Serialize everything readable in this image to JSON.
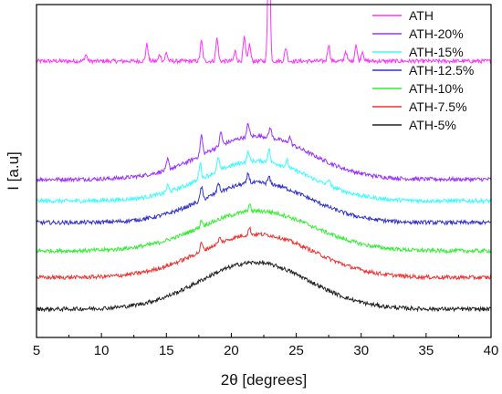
{
  "chart_data": {
    "type": "line",
    "xlabel": "2θ [degrees]",
    "ylabel": "I [a.u]",
    "xlim": [
      5,
      40
    ],
    "x_ticks": [
      5,
      10,
      15,
      20,
      25,
      30,
      35,
      40
    ],
    "grid": false,
    "legend_position": "top-right",
    "series": [
      {
        "name": "ATH",
        "color": "#ff33ff",
        "offset": 0.83,
        "hump": 0.0,
        "hump_center": 22,
        "hump_width": 3.5,
        "peaks": [
          [
            8.8,
            0.02
          ],
          [
            13.5,
            0.05
          ],
          [
            14.5,
            0.02
          ],
          [
            15.0,
            0.025
          ],
          [
            17.7,
            0.06
          ],
          [
            18.9,
            0.07
          ],
          [
            20.3,
            0.03
          ],
          [
            21.0,
            0.07
          ],
          [
            21.4,
            0.05
          ],
          [
            22.9,
            0.4
          ],
          [
            24.2,
            0.04
          ],
          [
            27.5,
            0.05
          ],
          [
            28.8,
            0.03
          ],
          [
            29.6,
            0.05
          ],
          [
            30.1,
            0.03
          ]
        ]
      },
      {
        "name": "ATH-20%",
        "color": "#9933ff",
        "offset": 0.475,
        "hump": 0.13,
        "hump_center": 22,
        "hump_width": 4,
        "peaks": [
          [
            15.1,
            0.03
          ],
          [
            17.7,
            0.06
          ],
          [
            19.2,
            0.04
          ],
          [
            21.3,
            0.04
          ],
          [
            23.0,
            0.03
          ],
          [
            24.5,
            0.02
          ]
        ]
      },
      {
        "name": "ATH-15%",
        "color": "#33ffff",
        "offset": 0.41,
        "hump": 0.12,
        "hump_center": 22,
        "hump_width": 4,
        "peaks": [
          [
            15.1,
            0.02
          ],
          [
            17.6,
            0.05
          ],
          [
            19.0,
            0.04
          ],
          [
            21.3,
            0.03
          ],
          [
            22.9,
            0.04
          ],
          [
            24.3,
            0.02
          ],
          [
            27.5,
            0.02
          ]
        ]
      },
      {
        "name": "ATH-12.5%",
        "color": "#3333cc",
        "offset": 0.345,
        "hump": 0.12,
        "hump_center": 22,
        "hump_width": 4,
        "peaks": [
          [
            17.7,
            0.04
          ],
          [
            19.0,
            0.03
          ],
          [
            21.3,
            0.03
          ],
          [
            22.9,
            0.02
          ]
        ]
      },
      {
        "name": "ATH-10%",
        "color": "#33ee33",
        "offset": 0.26,
        "hump": 0.12,
        "hump_center": 22,
        "hump_width": 4.3,
        "peaks": [
          [
            17.7,
            0.02
          ],
          [
            21.4,
            0.02
          ]
        ]
      },
      {
        "name": "ATH-7.5%",
        "color": "#ee3333",
        "offset": 0.18,
        "hump": 0.13,
        "hump_center": 22,
        "hump_width": 4.3,
        "peaks": [
          [
            17.7,
            0.025
          ],
          [
            19.1,
            0.015
          ],
          [
            21.4,
            0.02
          ]
        ]
      },
      {
        "name": "ATH-5%",
        "color": "#222222",
        "offset": 0.085,
        "hump": 0.14,
        "hump_center": 21.8,
        "hump_width": 4.2,
        "peaks": []
      }
    ]
  }
}
